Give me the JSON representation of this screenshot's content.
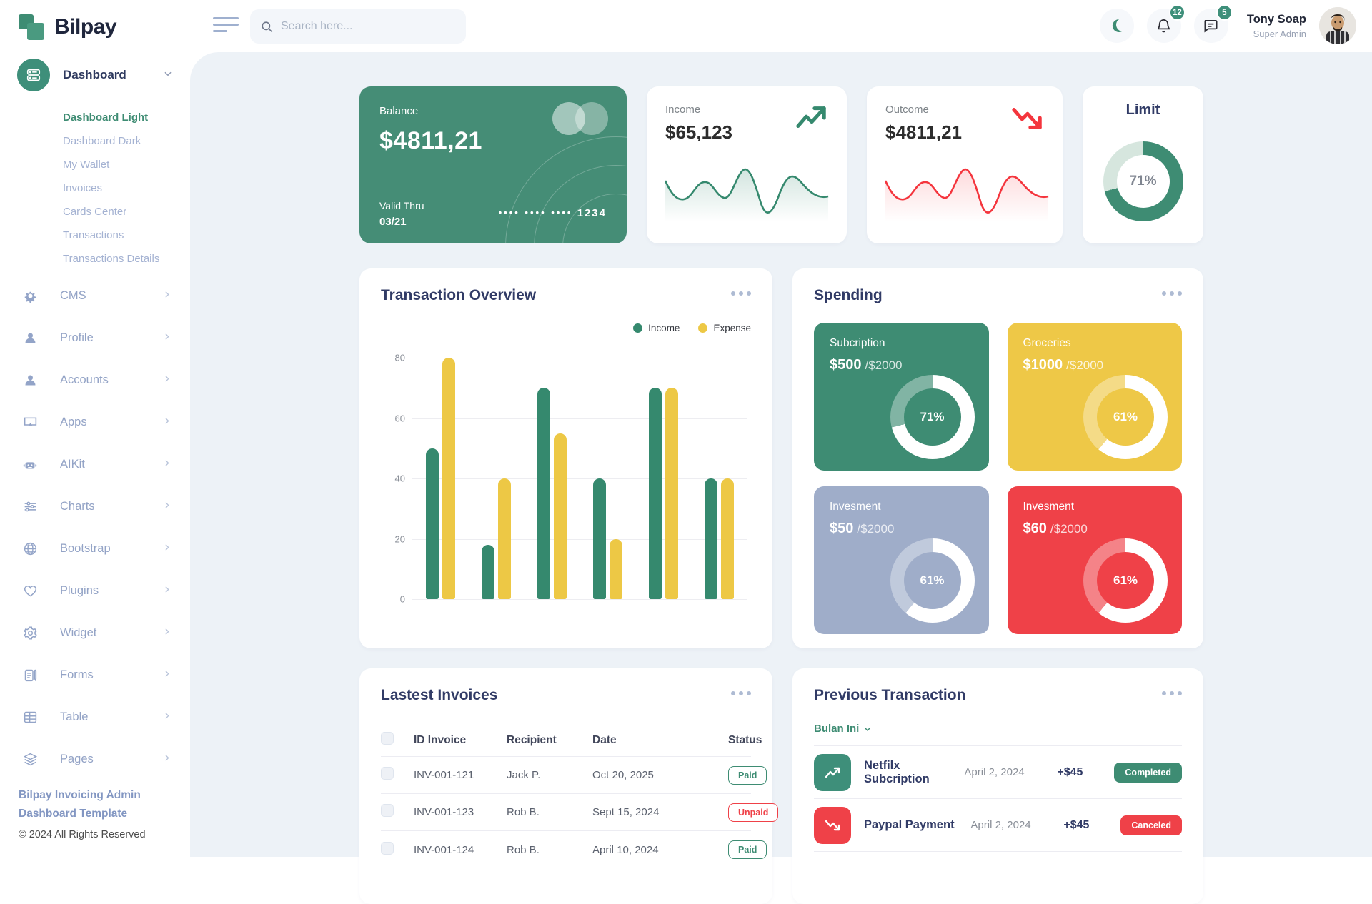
{
  "brand": {
    "name": "Bilpay"
  },
  "header": {
    "search_placeholder": "Search here...",
    "notification_count": "12",
    "message_count": "5",
    "user": {
      "name": "Tony Soap",
      "role": "Super Admin"
    }
  },
  "sidebar": {
    "main_item": {
      "label": "Dashboard"
    },
    "submenu": [
      {
        "label": "Dashboard Light"
      },
      {
        "label": "Dashboard Dark"
      },
      {
        "label": "My Wallet"
      },
      {
        "label": "Invoices"
      },
      {
        "label": "Cards Center"
      },
      {
        "label": "Transactions"
      },
      {
        "label": "Transactions Details"
      }
    ],
    "items": [
      {
        "label": "CMS"
      },
      {
        "label": "Profile"
      },
      {
        "label": "Accounts"
      },
      {
        "label": "Apps"
      },
      {
        "label": "AIKit"
      },
      {
        "label": "Charts"
      },
      {
        "label": "Bootstrap"
      },
      {
        "label": "Plugins"
      },
      {
        "label": "Widget"
      },
      {
        "label": "Forms"
      },
      {
        "label": "Table"
      },
      {
        "label": "Pages"
      }
    ],
    "footer": {
      "line1": "Bilpay Invoicing Admin",
      "line2": "Dashboard Template",
      "line3": "© 2024 All Rights Reserved"
    }
  },
  "cards": {
    "balance": {
      "label": "Balance",
      "amount": "$4811,21",
      "valid_label": "Valid Thru",
      "valid_value": "03/21",
      "masked_digits": "•••• •••• ••••",
      "last4": "1234"
    },
    "income": {
      "label": "Income",
      "amount": "$65,123"
    },
    "outcome": {
      "label": "Outcome",
      "amount": "$4811,21"
    },
    "limit": {
      "label": "Limit",
      "percent": 71,
      "percent_label": "71%"
    }
  },
  "transaction_overview": {
    "title": "Transaction Overview"
  },
  "chart_data": {
    "type": "bar",
    "title": "Transaction Overview",
    "categories": [
      "",
      "",
      "",
      "",
      "",
      ""
    ],
    "series": [
      {
        "name": "Income",
        "color": "#35896e",
        "values": [
          50,
          18,
          70,
          40,
          70,
          40
        ]
      },
      {
        "name": "Expense",
        "color": "#edc845",
        "values": [
          80,
          40,
          55,
          20,
          70,
          40
        ]
      }
    ],
    "ylim": [
      0,
      80
    ],
    "yticks": [
      0,
      20,
      40,
      60,
      80
    ],
    "grid": true,
    "legend_position": "top-right"
  },
  "spending": {
    "title": "Spending",
    "tiles": [
      {
        "label": "Subcription",
        "amount": "$500",
        "total": "/$2000",
        "percent": 71,
        "percent_label": "71%",
        "color": "#3e8c73"
      },
      {
        "label": "Groceries",
        "amount": "$1000",
        "total": "/$2000",
        "percent": 61,
        "percent_label": "61%",
        "color": "#eec847"
      },
      {
        "label": "Invesment",
        "amount": "$50",
        "total": "/$2000",
        "percent": 61,
        "percent_label": "61%",
        "color": "#9fadc9"
      },
      {
        "label": "Invesment",
        "amount": "$60",
        "total": "/$2000",
        "percent": 61,
        "percent_label": "61%",
        "color": "#ef4148"
      }
    ]
  },
  "invoices": {
    "title": "Lastest Invoices",
    "columns": {
      "id": "ID Invoice",
      "recipient": "Recipient",
      "date": "Date",
      "status": "Status"
    },
    "rows": [
      {
        "id": "INV-001-121",
        "recipient": "Jack P.",
        "date": "Oct 20, 2025",
        "status": "Paid"
      },
      {
        "id": "INV-001-123",
        "recipient": "Rob B.",
        "date": "Sept 15, 2024",
        "status": "Unpaid"
      },
      {
        "id": "INV-001-124",
        "recipient": "Rob B.",
        "date": "April 10, 2024",
        "status": "Paid"
      }
    ]
  },
  "previous_transactions": {
    "title": "Previous Transaction",
    "filter_label": "Bulan Ini",
    "rows": [
      {
        "name": "Netfilx Subcription",
        "date": "April 2, 2024",
        "amount": "+$45",
        "status": "Completed"
      },
      {
        "name": "Paypal Payment",
        "date": "April 2, 2024",
        "amount": "+$45",
        "status": "Canceled"
      }
    ]
  },
  "colors": {
    "primary_green": "#3e8c73",
    "accent_yellow": "#eec847",
    "accent_red": "#ef4148",
    "accent_grayblue": "#9fadc9",
    "navy_text": "#313b66",
    "content_bg": "#edf2f7",
    "limit_ring_rest": "#d6e6de"
  }
}
